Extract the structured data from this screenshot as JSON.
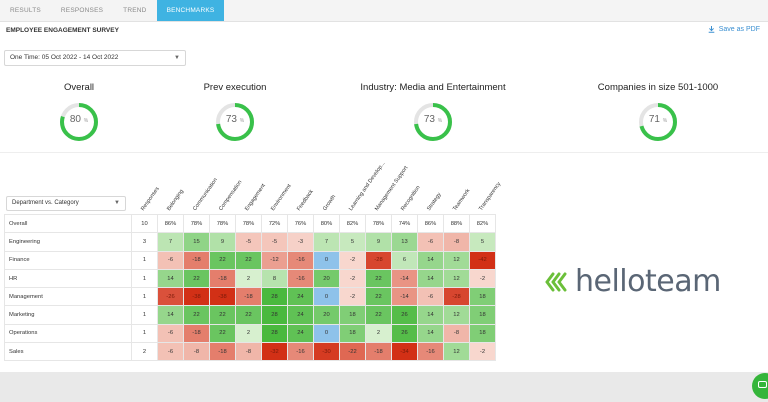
{
  "tabs": [
    "RESULTS",
    "RESPONSES",
    "TREND",
    "BENCHMARKS"
  ],
  "active_tab": 3,
  "title": "EMPLOYEE ENGAGEMENT SURVEY",
  "save_pdf": "Save as PDF",
  "date_filter": "One Time: 05 Oct 2022 - 14 Oct 2022",
  "gauges": [
    {
      "label": "Overall",
      "value": "80",
      "unit": "%",
      "pct": 0.8
    },
    {
      "label": "Prev execution",
      "value": "73",
      "unit": "%",
      "pct": 0.73
    },
    {
      "label": "Industry: Media and Entertainment",
      "value": "73",
      "unit": "%",
      "pct": 0.73
    },
    {
      "label": "Companies in size 501-1000",
      "value": "71",
      "unit": "%",
      "pct": 0.71
    }
  ],
  "dept_filter": "Department vs. Category",
  "columns": [
    "Responses",
    "Belonging",
    "Communication",
    "Compensation",
    "Engagement",
    "Environment",
    "Feedback",
    "Growth",
    "Learning and Develop...",
    "Management Support",
    "Recognition",
    "Strategy",
    "Teamwork",
    "Transparency"
  ],
  "rows": [
    {
      "name": "Overall",
      "resp": "10",
      "values": [
        "86%",
        "78%",
        "78%",
        "78%",
        "72%",
        "76%",
        "80%",
        "82%",
        "78%",
        "74%",
        "86%",
        "88%",
        "82%"
      ]
    },
    {
      "name": "Engineering",
      "resp": "3",
      "values": [
        "7",
        "15",
        "9",
        "-5",
        "-5",
        "-3",
        "7",
        "5",
        "9",
        "13",
        "-6",
        "-8",
        "5"
      ]
    },
    {
      "name": "Finance",
      "resp": "1",
      "values": [
        "-6",
        "-18",
        "22",
        "22",
        "-12",
        "-16",
        "0",
        "-2",
        "-28",
        "6",
        "14",
        "12",
        "-42"
      ]
    },
    {
      "name": "HR",
      "resp": "1",
      "values": [
        "14",
        "22",
        "-18",
        "2",
        "8",
        "-16",
        "20",
        "-2",
        "22",
        "-14",
        "14",
        "12",
        "-2"
      ]
    },
    {
      "name": "Management",
      "resp": "1",
      "values": [
        "-26",
        "-38",
        "-38",
        "-18",
        "28",
        "24",
        "0",
        "-2",
        "22",
        "-14",
        "-6",
        "-28",
        "18"
      ]
    },
    {
      "name": "Marketing",
      "resp": "1",
      "values": [
        "14",
        "22",
        "22",
        "22",
        "28",
        "24",
        "20",
        "18",
        "22",
        "26",
        "14",
        "12",
        "18"
      ]
    },
    {
      "name": "Operations",
      "resp": "1",
      "values": [
        "-6",
        "-18",
        "22",
        "2",
        "28",
        "24",
        "0",
        "18",
        "2",
        "26",
        "14",
        "-8",
        "18"
      ]
    },
    {
      "name": "Sales",
      "resp": "2",
      "values": [
        "-6",
        "-8",
        "-18",
        "-8",
        "-32",
        "-16",
        "-30",
        "-22",
        "-18",
        "-34",
        "-16",
        "12",
        "-2"
      ]
    }
  ],
  "logo_text": "helloteam",
  "colors": {
    "accent": "#3fb3e2",
    "gauge": "#39c14a",
    "positive": "#3cb832",
    "negative": "#d83a1e",
    "zero": "#8ec2ea"
  }
}
